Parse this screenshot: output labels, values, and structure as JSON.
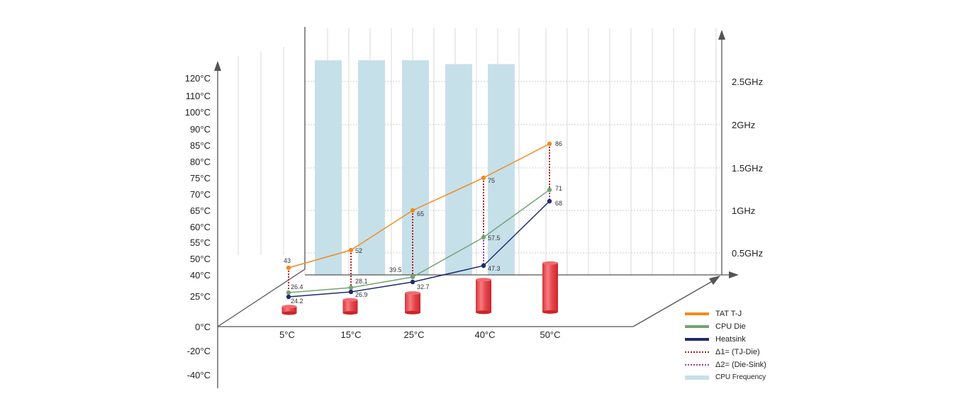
{
  "chart_data": {
    "type": "line",
    "categories": [
      "5°C",
      "15°C",
      "25°C",
      "40°C",
      "50°C"
    ],
    "left_axis_ticks": [
      "120°C",
      "110°C",
      "100°C",
      "90°C",
      "85°C",
      "80°C",
      "75°C",
      "70°C",
      "65°C",
      "60°C",
      "55°C",
      "50°C",
      "40°C",
      "25°C",
      "0°C",
      "-20°C",
      "-40°C"
    ],
    "right_axis_ticks": [
      "2.5GHz",
      "2GHz",
      "1.5GHz",
      "1GHz",
      "0.5GHz"
    ],
    "series": [
      {
        "name": "TAT T-J",
        "color": "#f28a1e",
        "values": [
          43,
          52,
          65,
          75,
          86
        ],
        "labels": [
          "43",
          "52",
          "65",
          "75",
          "86"
        ]
      },
      {
        "name": "CPU Die",
        "color": "#74a373",
        "values": [
          26.4,
          28.1,
          39.5,
          57.5,
          71
        ],
        "labels": [
          "26.4",
          "28.1",
          "39.5",
          "57.5",
          "71"
        ]
      },
      {
        "name": "Heatsink",
        "color": "#1f2a6e",
        "values": [
          24.2,
          26.9,
          32.7,
          47.3,
          68
        ],
        "labels": [
          "24.2",
          "26.9",
          "32.7",
          "47.3",
          "68"
        ]
      }
    ],
    "delta_series": [
      {
        "name": "Δ1= (TJ-Die)",
        "color": "#b22222"
      },
      {
        "name": "Δ2= (Die-Sink)",
        "color": "#9b3aa0"
      }
    ],
    "frequency_series": {
      "name": "CPU Frequency",
      "color": "#c6e0ea",
      "values_ghz": [
        2.5,
        2.5,
        2.5,
        2.48,
        2.48
      ]
    },
    "difference_cylinders": [
      1,
      2,
      3,
      5,
      7.5
    ],
    "grid": true,
    "legend_position": "bottom-right"
  }
}
